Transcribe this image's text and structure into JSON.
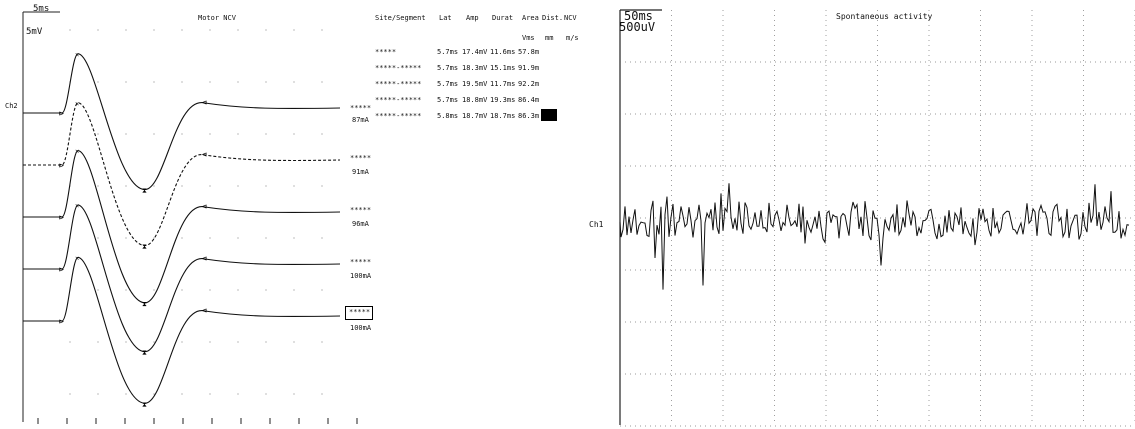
{
  "left": {
    "timebase": "5ms",
    "sensitivity": "5mV",
    "title": "Motor NCV",
    "channel": "Ch2",
    "headers": [
      "Site/Segment",
      "Lat",
      "Amp",
      "Durat",
      "Area",
      "Dist.",
      "NCV"
    ],
    "units": [
      "Vms",
      "mm",
      "m/s"
    ],
    "rows": [
      {
        "site": "*****",
        "lat": "5.7ms",
        "amp": "17.4mV",
        "durat": "11.6ms",
        "area": "57.8m"
      },
      {
        "site": "*****-*****",
        "lat": "5.7ms",
        "amp": "18.3mV",
        "durat": "15.1ms",
        "area": "91.9m"
      },
      {
        "site": "*****-*****",
        "lat": "5.7ms",
        "amp": "19.5mV",
        "durat": "11.7ms",
        "area": "92.2m"
      },
      {
        "site": "*****-*****",
        "lat": "5.7ms",
        "amp": "18.8mV",
        "durat": "19.3ms",
        "area": "86.4m"
      },
      {
        "site": "*****-*****",
        "lat": "5.8ms",
        "amp": "18.7mV",
        "durat": "18.7ms",
        "area": "86.3m"
      }
    ],
    "trace_labels": [
      {
        "name": "*****",
        "current": "87mA"
      },
      {
        "name": "*****",
        "current": "91mA"
      },
      {
        "name": "*****",
        "current": "96mA"
      },
      {
        "name": "*****",
        "current": "100mA"
      },
      {
        "name": "*****",
        "current": "100mA"
      }
    ]
  },
  "right": {
    "timebase": "50ms",
    "sensitivity": "500uV",
    "title": "Spontaneous activity",
    "channel": "Ch1"
  },
  "chart_data": [
    {
      "type": "line",
      "title": "Motor NCV",
      "x_unit_per_div": "5ms",
      "y_unit_per_div": "5mV",
      "series": [
        {
          "name": "87mA",
          "latency_ms": 5.7,
          "amplitude_mV": 17.4,
          "duration_ms": 11.6,
          "area": "57.8m"
        },
        {
          "name": "91mA",
          "latency_ms": 5.7,
          "amplitude_mV": 18.3,
          "duration_ms": 15.1,
          "area": "91.9m"
        },
        {
          "name": "96mA",
          "latency_ms": 5.7,
          "amplitude_mV": 19.5,
          "duration_ms": 11.7,
          "area": "92.2m"
        },
        {
          "name": "100mA",
          "latency_ms": 5.7,
          "amplitude_mV": 18.8,
          "duration_ms": 19.3,
          "area": "86.4m"
        },
        {
          "name": "100mA",
          "latency_ms": 5.8,
          "amplitude_mV": 18.7,
          "duration_ms": 18.7,
          "area": "86.3m"
        }
      ]
    },
    {
      "type": "line",
      "title": "Spontaneous activity",
      "x_unit_per_div": "50ms",
      "y_unit_per_div": "500uV",
      "series": [
        {
          "name": "Ch1"
        }
      ]
    }
  ]
}
